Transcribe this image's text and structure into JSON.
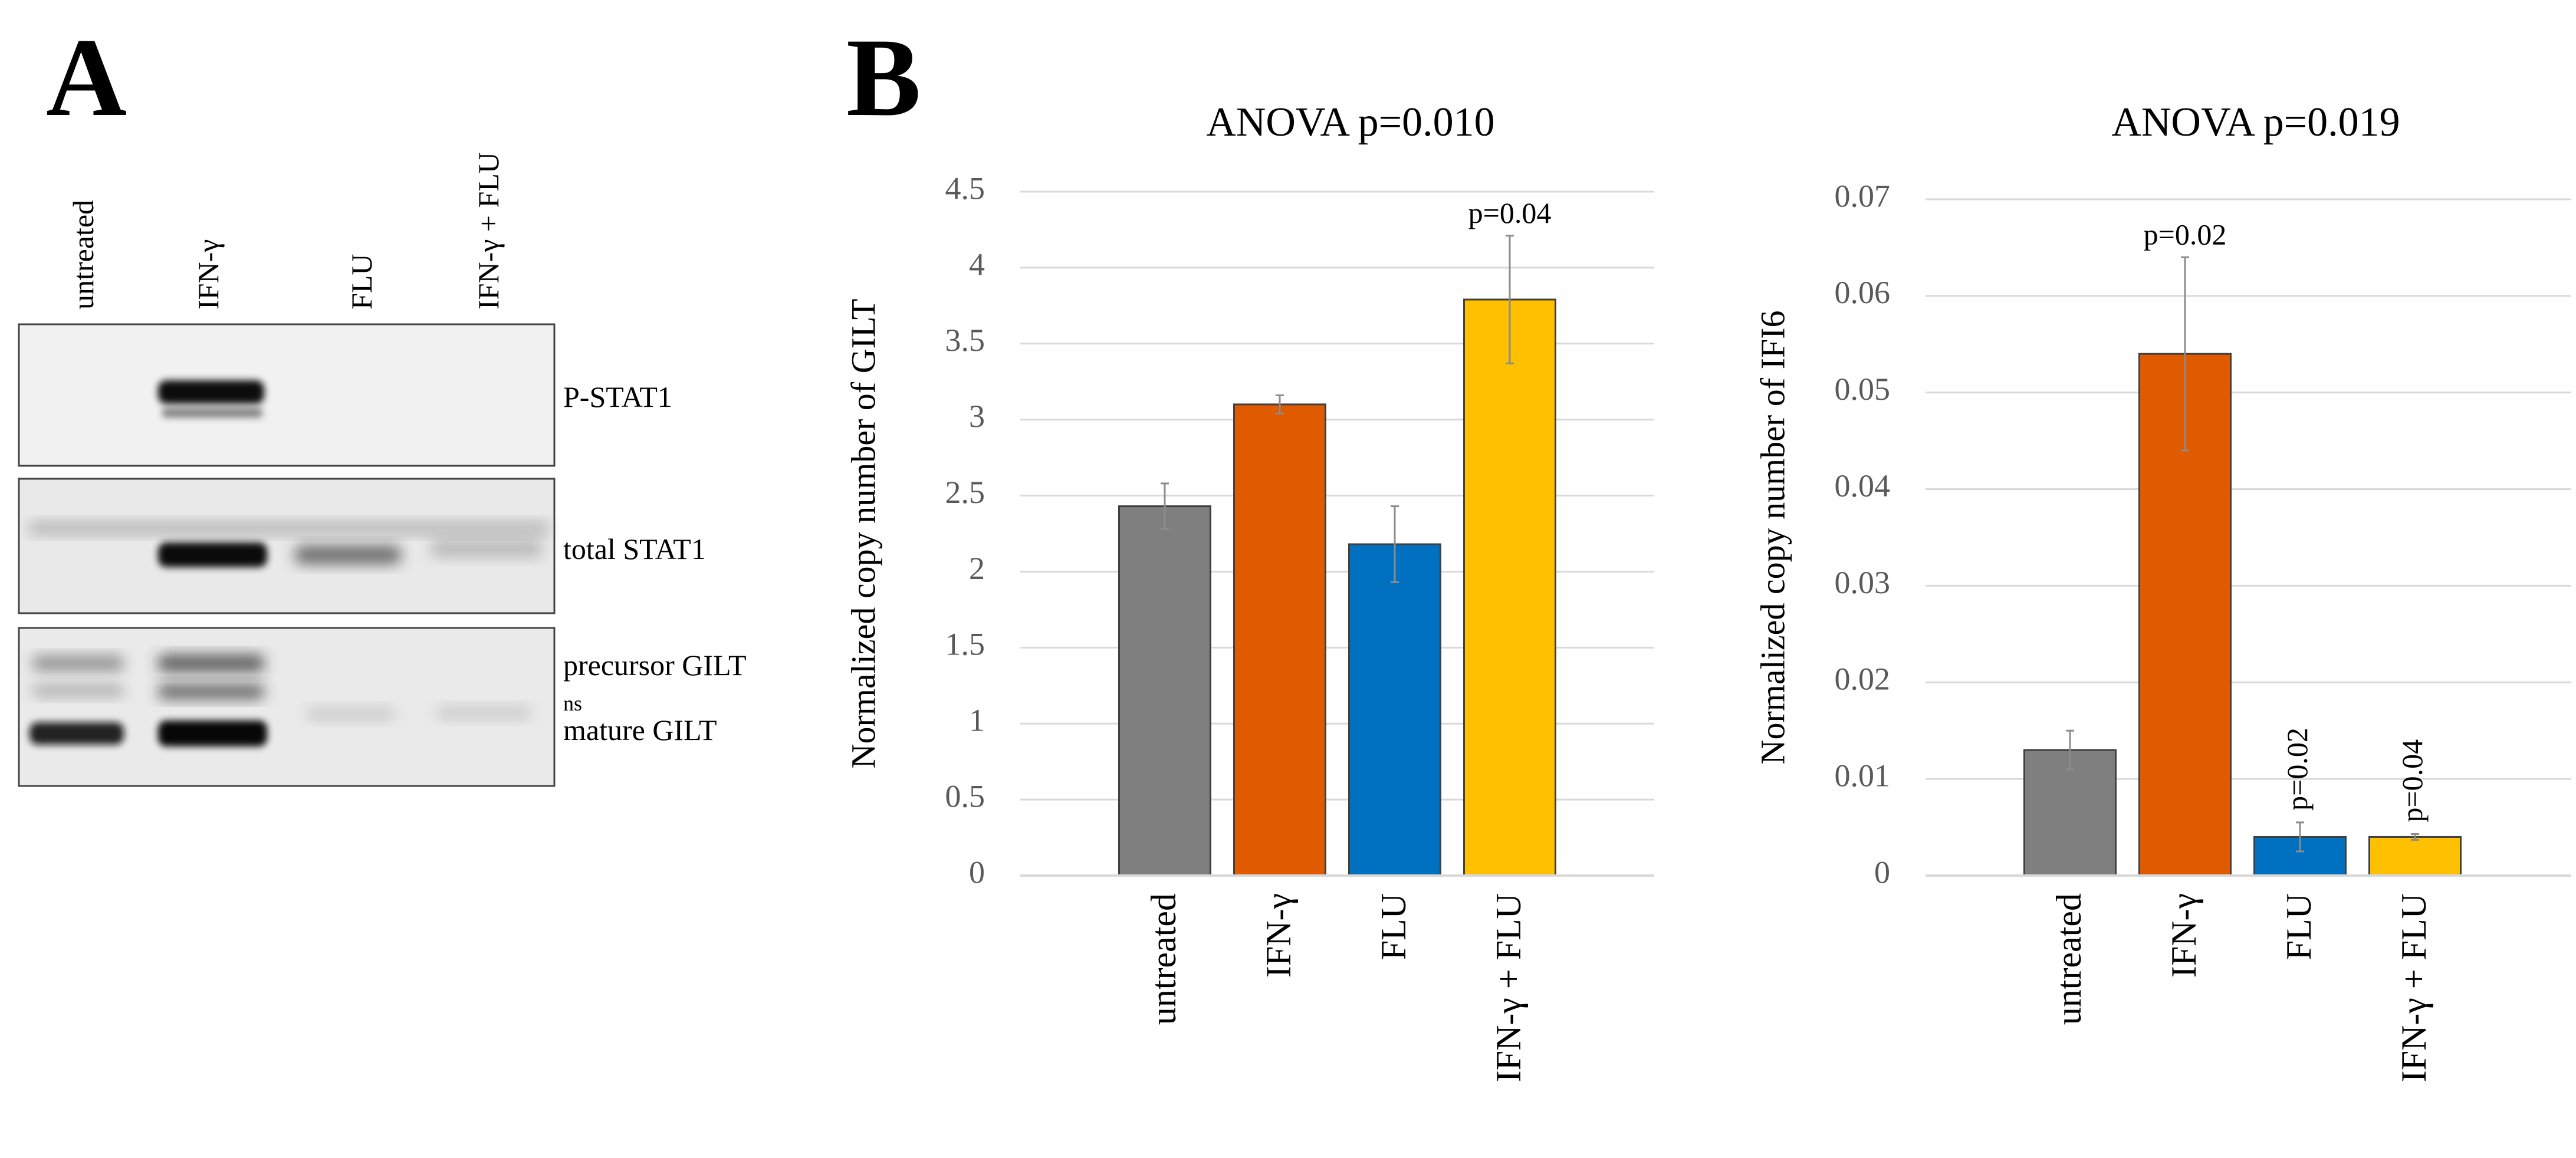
{
  "panel_a": {
    "panel_letter": "A",
    "lane_labels": [
      "untreated",
      "IFN-γ",
      "FLU",
      "IFN-γ + FLU"
    ],
    "blots": [
      {
        "labels": [
          "P-STAT1"
        ]
      },
      {
        "labels": [
          "total STAT1"
        ]
      },
      {
        "labels": [
          "precursor GILT",
          "ns",
          "mature GILT"
        ]
      }
    ]
  },
  "panel_b": {
    "panel_letter": "B"
  },
  "colors": {
    "untreated": "#7f7f7f",
    "ifn": "#e05a00",
    "flu": "#0070c0",
    "combo": "#ffc000",
    "grid": "#d9d9d9",
    "axis_text": "#595959",
    "error_bar": "#8c8c8c"
  },
  "chart_data": [
    {
      "type": "bar",
      "title": "ANOVA p=0.010",
      "xlabel": "",
      "ylabel": "Normalized copy number of GILT",
      "categories": [
        "untreated",
        "IFN-γ",
        "FLU",
        "IFN-γ + FLU"
      ],
      "values": [
        2.43,
        3.1,
        2.18,
        3.79
      ],
      "errors": [
        0.15,
        0.06,
        0.25,
        0.42
      ],
      "ylim": [
        0,
        4.5
      ],
      "yticks": [
        0,
        0.5,
        1,
        1.5,
        2,
        2.5,
        3,
        3.5,
        4,
        4.5
      ],
      "ytick_labels": [
        "0",
        "0.5",
        "1",
        "1.5",
        "2",
        "2.5",
        "3",
        "3.5",
        "4",
        "4.5"
      ],
      "annotations": [
        "",
        "",
        "",
        "p=0.04"
      ],
      "annotation_orientation": [
        "horizontal",
        "horizontal",
        "horizontal",
        "horizontal"
      ],
      "grid": true,
      "legend": "none"
    },
    {
      "type": "bar",
      "title": "ANOVA p=0.019",
      "xlabel": "",
      "ylabel": "Normalized copy number of IFI6",
      "categories": [
        "untreated",
        "IFN-γ",
        "FLU",
        "IFN-γ + FLU"
      ],
      "values": [
        0.013,
        0.054,
        0.004,
        0.004
      ],
      "errors": [
        0.002,
        0.01,
        0.0015,
        0.0003
      ],
      "ylim": [
        0,
        0.07
      ],
      "yticks": [
        0,
        0.01,
        0.02,
        0.03,
        0.04,
        0.05,
        0.06,
        0.07
      ],
      "ytick_labels": [
        "0",
        "0.01",
        "0.02",
        "0.03",
        "0.04",
        "0.05",
        "0.06",
        "0.07"
      ],
      "annotations": [
        "",
        "p=0.02",
        "p=0.02",
        "p=0.04"
      ],
      "annotation_orientation": [
        "horizontal",
        "horizontal",
        "vertical",
        "vertical"
      ],
      "grid": true,
      "legend": "none"
    }
  ]
}
